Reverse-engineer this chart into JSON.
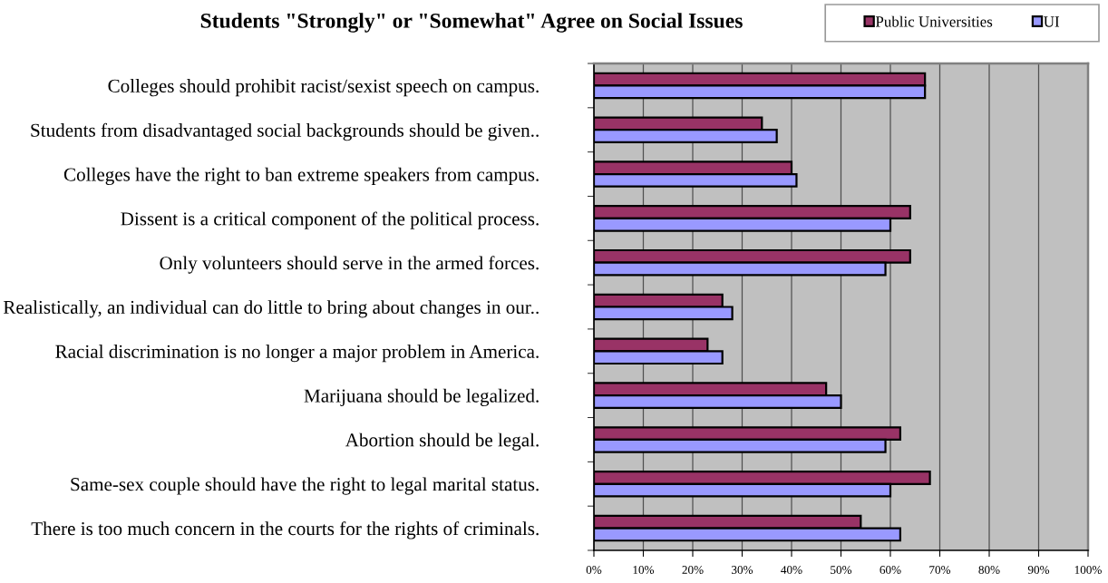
{
  "chart_data": {
    "type": "bar",
    "orientation": "horizontal",
    "title": "Students \"Strongly\" or \"Somewhat\" Agree on Social Issues",
    "categories": [
      "Colleges should prohibit racist/sexist speech on campus.",
      "Students from disadvantaged social backgrounds should be given..",
      "Colleges have the right to ban extreme speakers from campus.",
      "Dissent is a critical component of the political process.",
      "Only volunteers should serve in the armed forces.",
      "Realistically, an individual can do little to bring about changes in our..",
      "Racial discrimination is no longer a major problem in America.",
      "Marijuana should be legalized.",
      "Abortion should be legal.",
      "Same-sex couple should have the right to legal marital status.",
      "There is too much concern in the courts for the rights of criminals."
    ],
    "series": [
      {
        "name": "Public Universities",
        "color": "#993366",
        "values": [
          67,
          34,
          40,
          64,
          64,
          26,
          23,
          47,
          62,
          68,
          54
        ]
      },
      {
        "name": "UI",
        "color": "#9999ff",
        "values": [
          67,
          37,
          41,
          60,
          59,
          28,
          26,
          50,
          59,
          60,
          62
        ]
      }
    ],
    "xlim": [
      0,
      100
    ],
    "xticks": [
      {
        "value": 0,
        "label": "0%"
      },
      {
        "value": 10,
        "label": "10%"
      },
      {
        "value": 20,
        "label": "20%"
      },
      {
        "value": 30,
        "label": "30%"
      },
      {
        "value": 40,
        "label": "40%"
      },
      {
        "value": 50,
        "label": "50%"
      },
      {
        "value": 60,
        "label": "60%"
      },
      {
        "value": 70,
        "label": "70%"
      },
      {
        "value": 80,
        "label": "80%"
      },
      {
        "value": 90,
        "label": "90%"
      },
      {
        "value": 100,
        "label": "100%"
      }
    ],
    "grid": "x",
    "legend": "top right"
  }
}
